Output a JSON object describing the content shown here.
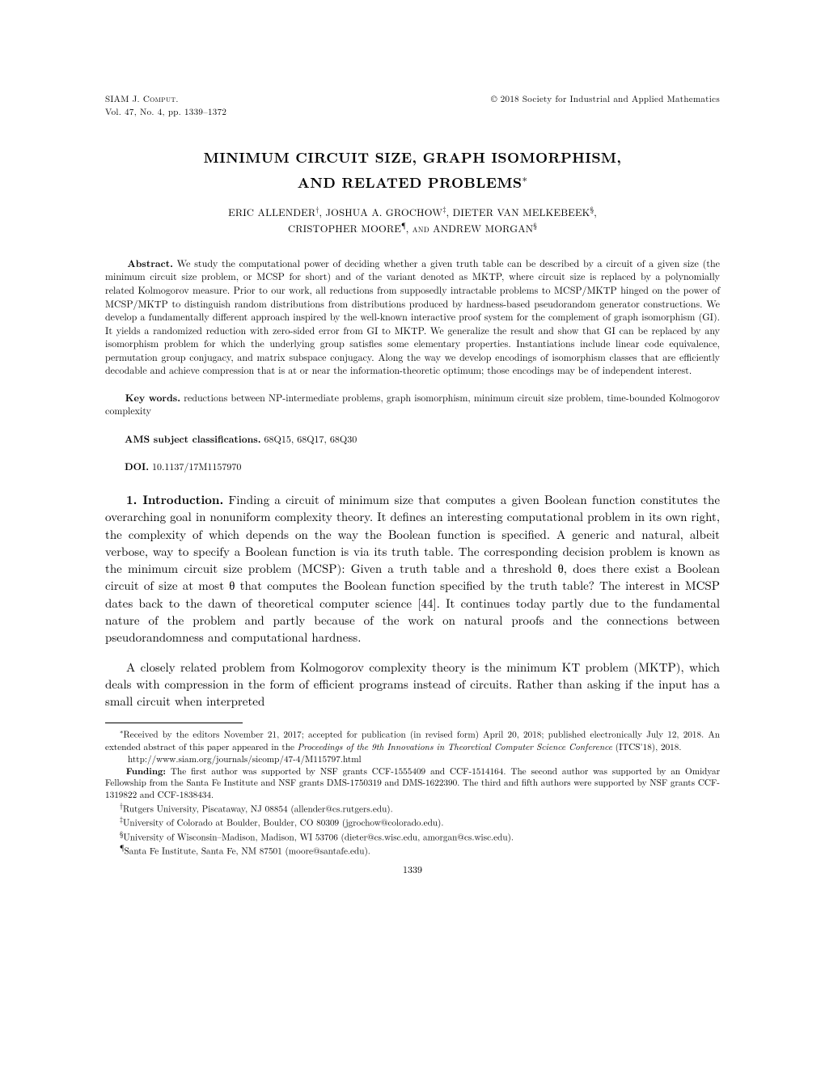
{
  "header": {
    "journal_sc": "SIAM J. Comput.",
    "copyright": "© 2018 Society for Industrial and Applied Mathematics",
    "volline": "Vol. 47, No. 4, pp. 1339–1372"
  },
  "title": {
    "line1": "MINIMUM CIRCUIT SIZE, GRAPH ISOMORPHISM,",
    "line2": "AND RELATED PROBLEMS",
    "asterisk": "∗"
  },
  "authors": {
    "line1_a": "ERIC ALLENDER",
    "line1_a_mark": "†",
    "sep1": ", ",
    "line1_b": "JOSHUA A. GROCHOW",
    "line1_b_mark": "‡",
    "sep2": ", ",
    "line1_c": "DIETER VAN MELKEBEEK",
    "line1_c_mark": "§",
    "sep3": ",",
    "line2_a": "CRISTOPHER MOORE",
    "line2_a_mark": "¶",
    "and": ", and ",
    "line2_b": "ANDREW MORGAN",
    "line2_b_mark": "§"
  },
  "abstract": {
    "label": "Abstract.",
    "text": " We study the computational power of deciding whether a given truth table can be described by a circuit of a given size (the minimum circuit size problem, or MCSP for short) and of the variant denoted as MKTP, where circuit size is replaced by a polynomially related Kolmogorov measure. Prior to our work, all reductions from supposedly intractable problems to MCSP/MKTP hinged on the power of MCSP/MKTP to distinguish random distributions from distributions produced by hardness-based pseudorandom generator constructions. We develop a fundamentally different approach inspired by the well-known interactive proof system for the complement of graph isomorphism (GI). It yields a randomized reduction with zero-sided error from GI to MKTP. We generalize the result and show that GI can be replaced by any isomorphism problem for which the underlying group satisfies some elementary properties. Instantiations include linear code equivalence, permutation group conjugacy, and matrix subspace conjugacy. Along the way we develop encodings of isomorphism classes that are efficiently decodable and achieve compression that is at or near the information-theoretic optimum; those encodings may be of independent interest."
  },
  "keywords": {
    "label": "Key words.",
    "text": " reductions between NP-intermediate problems, graph isomorphism, minimum circuit size problem, time-bounded Kolmogorov complexity"
  },
  "ams": {
    "label": "AMS subject classifications.",
    "text": " 68Q15, 68Q17, 68Q30"
  },
  "doi": {
    "label": "DOI.",
    "text": " 10.1137/17M1157970"
  },
  "body": {
    "section_lead": "1. Introduction.",
    "para1_rest": " Finding a circuit of minimum size that computes a given Boolean function constitutes the overarching goal in nonuniform complexity theory. It defines an interesting computational problem in its own right, the complexity of which depends on the way the Boolean function is specified. A generic and natural, albeit verbose, way to specify a Boolean function is via its truth table. The corresponding decision problem is known as the minimum circuit size problem (MCSP): Given a truth table and a threshold θ, does there exist a Boolean circuit of size at most θ that computes the Boolean function specified by the truth table? The interest in MCSP dates back to the dawn of theoretical computer science [44]. It continues today partly due to the fundamental nature of the problem and partly because of the work on natural proofs and the connections between pseudorandomness and computational hardness.",
    "para2": "A closely related problem from Kolmogorov complexity theory is the minimum KT problem (MKTP), which deals with compression in the form of efficient programs instead of circuits. Rather than asking if the input has a small circuit when interpreted"
  },
  "footnotes": {
    "star_mark": "∗",
    "star_text": "Received by the editors November 21, 2017; accepted for publication (in revised form) April 20, 2018; published electronically July 12, 2018. An extended abstract of this paper appeared in the ",
    "star_ital": "Proceedings of the 9th Innovations in Theoretical Computer Science Conference",
    "star_tail": " (ITCS'18), 2018.",
    "url": "http://www.siam.org/journals/sicomp/47-4/M115797.html",
    "funding_label": "Funding:",
    "funding_text": " The first author was supported by NSF grants CCF-1555409 and CCF-1514164. The second author was supported by an Omidyar Fellowship from the Santa Fe Institute and NSF grants DMS-1750319 and DMS-1622390. The third and fifth authors were supported by NSF grants CCF-1319822 and CCF-1838434.",
    "dagger_mark": "†",
    "dagger_text": "Rutgers University, Piscataway, NJ 08854 (allender@cs.rutgers.edu).",
    "ddagger_mark": "‡",
    "ddagger_text": "University of Colorado at Boulder, Boulder, CO 80309 (jgrochow@colorado.edu).",
    "section_mark": "§",
    "section_text": "University of Wisconsin–Madison, Madison, WI 53706 (dieter@cs.wisc.edu, amorgan@cs.wisc.edu).",
    "para_mark": "¶",
    "para_text": "Santa Fe Institute, Santa Fe, NM 87501 (moore@santafe.edu)."
  },
  "page_number": "1339"
}
